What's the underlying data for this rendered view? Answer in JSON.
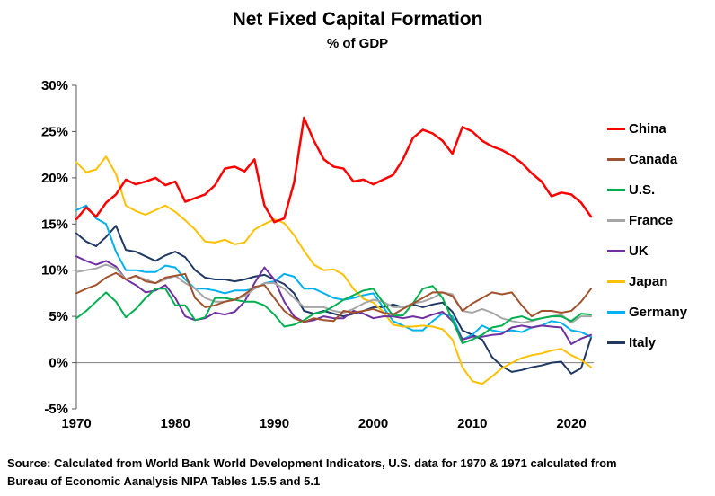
{
  "title": "Net Fixed Capital Formation",
  "subtitle": "% of GDP",
  "source_line1": "Source:  Calculated from World Bank World Development Indicators, U.S. data for 1970 & 1971 calculated from",
  "source_line2": "Bureau of Economic Aanalysis NIPA Tables 1.5.5 and 5.1",
  "chart_data": {
    "type": "line",
    "title": "Net Fixed Capital Formation",
    "subtitle": "% of GDP",
    "ylabel": "% of GDP",
    "ylim": [
      -5,
      30
    ],
    "grid": false,
    "zero_line": true,
    "legend_position": "right",
    "y_ticks": [
      {
        "label": "30%",
        "value": 30
      },
      {
        "label": "25%",
        "value": 25
      },
      {
        "label": "20%",
        "value": 20
      },
      {
        "label": "15%",
        "value": 15
      },
      {
        "label": "10%",
        "value": 10
      },
      {
        "label": "5%",
        "value": 5
      },
      {
        "label": "0%",
        "value": 0
      },
      {
        "label": "-5%",
        "value": -5
      }
    ],
    "x_ticks": [
      {
        "label": "1970",
        "value": 1970
      },
      {
        "label": "1980",
        "value": 1980
      },
      {
        "label": "1990",
        "value": 1990
      },
      {
        "label": "2000",
        "value": 2000
      },
      {
        "label": "2010",
        "value": 2010
      },
      {
        "label": "2020",
        "value": 2020
      }
    ],
    "years": [
      1970,
      1971,
      1972,
      1973,
      1974,
      1975,
      1976,
      1977,
      1978,
      1979,
      1980,
      1981,
      1982,
      1983,
      1984,
      1985,
      1986,
      1987,
      1988,
      1989,
      1990,
      1991,
      1992,
      1993,
      1994,
      1995,
      1996,
      1997,
      1998,
      1999,
      2000,
      2001,
      2002,
      2003,
      2004,
      2005,
      2006,
      2007,
      2008,
      2009,
      2010,
      2011,
      2012,
      2013,
      2014,
      2015,
      2016,
      2017,
      2018,
      2019,
      2020,
      2021,
      2022
    ],
    "series": [
      {
        "name": "China",
        "color": "#FF0000",
        "values": [
          15.5,
          16.8,
          15.8,
          17.3,
          18.2,
          19.8,
          19.3,
          19.6,
          20.0,
          19.2,
          19.6,
          17.4,
          17.8,
          18.2,
          19.2,
          21.0,
          21.2,
          20.7,
          22.0,
          17.0,
          15.2,
          15.6,
          19.5,
          26.5,
          24.0,
          22.0,
          21.2,
          21.0,
          19.6,
          19.8,
          19.3,
          19.8,
          20.3,
          22.0,
          24.3,
          25.2,
          24.8,
          24.0,
          22.6,
          25.5,
          25.0,
          24.0,
          23.4,
          23.0,
          22.4,
          21.6,
          20.5,
          19.6,
          18.0,
          18.4,
          18.2,
          17.3,
          15.8
        ]
      },
      {
        "name": "Canada",
        "color": "#A0522D",
        "values": [
          7.5,
          8.0,
          8.4,
          9.2,
          9.7,
          9.0,
          9.4,
          8.8,
          8.6,
          9.2,
          9.4,
          9.6,
          7.0,
          6.0,
          6.2,
          6.6,
          6.8,
          7.4,
          8.2,
          8.4,
          7.0,
          5.6,
          4.8,
          4.4,
          4.8,
          4.6,
          4.5,
          5.6,
          5.4,
          5.6,
          5.8,
          5.4,
          5.2,
          5.8,
          6.4,
          7.0,
          7.6,
          7.6,
          7.2,
          5.6,
          6.4,
          7.0,
          7.6,
          7.4,
          7.6,
          6.2,
          5.0,
          5.6,
          5.6,
          5.4,
          5.6,
          6.6,
          8.0
        ]
      },
      {
        "name": "U.S.",
        "color": "#00B050",
        "values": [
          4.8,
          5.6,
          6.6,
          7.6,
          6.6,
          4.9,
          5.8,
          7.0,
          8.0,
          8.0,
          6.2,
          6.2,
          4.6,
          4.9,
          7.0,
          7.0,
          6.8,
          6.6,
          6.6,
          6.2,
          5.2,
          3.9,
          4.1,
          4.6,
          5.3,
          5.5,
          6.1,
          6.8,
          7.3,
          7.8,
          8.0,
          6.5,
          5.1,
          5.1,
          6.4,
          8.0,
          8.3,
          7.0,
          4.6,
          2.1,
          2.5,
          3.0,
          3.8,
          4.0,
          4.8,
          5.0,
          4.6,
          4.8,
          5.0,
          5.0,
          4.5,
          5.3,
          5.2
        ]
      },
      {
        "name": "France",
        "color": "#A6A6A6",
        "values": [
          9.8,
          10.0,
          10.2,
          10.6,
          10.2,
          9.0,
          9.4,
          9.0,
          8.6,
          9.0,
          9.4,
          8.6,
          8.0,
          7.0,
          6.6,
          6.6,
          6.8,
          7.2,
          8.0,
          8.6,
          8.6,
          8.0,
          7.0,
          6.0,
          6.0,
          6.0,
          5.6,
          5.4,
          5.8,
          6.4,
          6.8,
          6.6,
          6.0,
          6.0,
          6.4,
          6.6,
          7.0,
          7.6,
          7.4,
          5.6,
          5.4,
          5.8,
          5.4,
          4.8,
          4.5,
          4.3,
          4.5,
          4.8,
          5.0,
          5.2,
          4.3,
          5.0,
          5.0
        ]
      },
      {
        "name": "UK",
        "color": "#7030A0",
        "values": [
          11.5,
          11.0,
          10.6,
          11.0,
          10.4,
          9.0,
          8.4,
          7.6,
          7.8,
          8.4,
          7.0,
          5.0,
          4.6,
          4.8,
          5.4,
          5.2,
          5.5,
          6.6,
          8.6,
          10.3,
          9.0,
          6.6,
          5.0,
          4.4,
          4.6,
          5.0,
          4.8,
          4.8,
          5.6,
          5.3,
          4.8,
          5.0,
          5.0,
          4.8,
          5.0,
          4.8,
          5.2,
          5.5,
          4.5,
          2.5,
          2.8,
          2.8,
          3.0,
          3.1,
          3.8,
          4.0,
          3.8,
          4.0,
          3.9,
          3.8,
          2.0,
          2.6,
          3.0
        ]
      },
      {
        "name": "Japan",
        "color": "#FFC000",
        "values": [
          21.7,
          20.6,
          20.9,
          22.3,
          20.4,
          17.0,
          16.4,
          16.0,
          16.5,
          17.0,
          16.3,
          15.4,
          14.4,
          13.1,
          13.0,
          13.3,
          12.8,
          13.0,
          14.4,
          15.0,
          15.5,
          15.1,
          13.8,
          12.1,
          10.6,
          10.0,
          10.1,
          9.5,
          8.0,
          6.9,
          6.5,
          5.5,
          4.1,
          3.9,
          3.9,
          4.0,
          3.9,
          3.6,
          2.5,
          -0.5,
          -2.0,
          -2.3,
          -1.5,
          -0.6,
          0.0,
          0.5,
          0.8,
          1.0,
          1.3,
          1.5,
          0.8,
          0.3,
          -0.5
        ]
      },
      {
        "name": "Germany",
        "color": "#00B0F0",
        "values": [
          16.5,
          17.0,
          15.6,
          15.0,
          12.0,
          10.0,
          10.0,
          9.8,
          9.8,
          10.5,
          10.3,
          9.0,
          8.0,
          8.0,
          7.8,
          7.5,
          7.8,
          7.8,
          8.0,
          8.6,
          8.8,
          9.6,
          9.3,
          8.0,
          8.0,
          7.5,
          7.0,
          6.8,
          7.0,
          7.3,
          7.5,
          6.0,
          4.5,
          4.0,
          3.5,
          3.5,
          4.5,
          5.3,
          5.0,
          2.5,
          3.0,
          4.0,
          3.5,
          3.3,
          3.5,
          3.3,
          3.8,
          4.0,
          4.5,
          4.3,
          3.5,
          3.3,
          2.8
        ]
      },
      {
        "name": "Italy",
        "color": "#1F3864",
        "values": [
          14.0,
          13.1,
          12.6,
          13.6,
          14.8,
          12.2,
          12.0,
          11.5,
          11.0,
          11.6,
          12.0,
          11.4,
          10.0,
          9.2,
          9.0,
          9.0,
          8.8,
          9.0,
          9.3,
          9.5,
          9.0,
          8.5,
          7.5,
          5.6,
          5.3,
          5.6,
          5.3,
          5.0,
          5.3,
          5.6,
          6.0,
          6.0,
          6.3,
          6.0,
          6.3,
          6.0,
          6.3,
          6.5,
          5.5,
          3.5,
          3.0,
          2.5,
          0.6,
          -0.4,
          -1.0,
          -0.8,
          -0.5,
          -0.3,
          0.0,
          0.1,
          -1.2,
          -0.6,
          2.7
        ]
      }
    ]
  }
}
